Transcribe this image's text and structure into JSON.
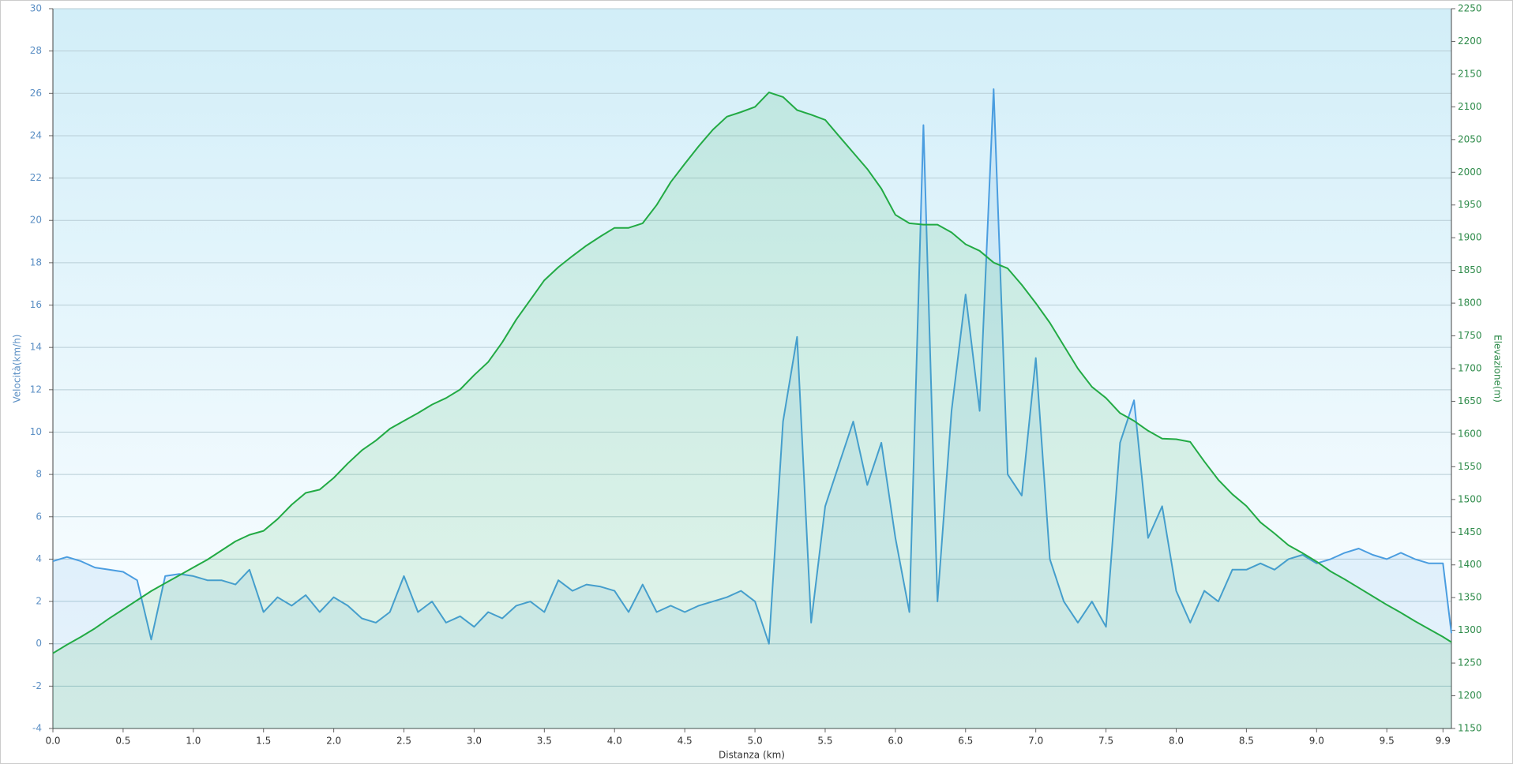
{
  "chart_data": {
    "type": "line",
    "x_label": "Distanza  (km)",
    "y_label": "Velocità(km/h)",
    "y2_label": "Elevazione(m)",
    "x": [
      0.0,
      0.1,
      0.2,
      0.3,
      0.4,
      0.5,
      0.6,
      0.7,
      0.8,
      0.9,
      1.0,
      1.1,
      1.2,
      1.3,
      1.4,
      1.5,
      1.6,
      1.7,
      1.8,
      1.9,
      2.0,
      2.1,
      2.2,
      2.3,
      2.4,
      2.5,
      2.6,
      2.7,
      2.8,
      2.9,
      3.0,
      3.1,
      3.2,
      3.3,
      3.4,
      3.5,
      3.6,
      3.7,
      3.8,
      3.9,
      4.0,
      4.1,
      4.2,
      4.3,
      4.4,
      4.5,
      4.6,
      4.7,
      4.8,
      4.9,
      5.0,
      5.1,
      5.2,
      5.3,
      5.4,
      5.5,
      5.6,
      5.7,
      5.8,
      5.9,
      6.0,
      6.1,
      6.2,
      6.3,
      6.4,
      6.5,
      6.6,
      6.7,
      6.8,
      6.9,
      7.0,
      7.1,
      7.2,
      7.3,
      7.4,
      7.5,
      7.6,
      7.7,
      7.8,
      7.9,
      8.0,
      8.1,
      8.2,
      8.3,
      8.4,
      8.5,
      8.6,
      8.7,
      8.8,
      8.9,
      9.0,
      9.1,
      9.2,
      9.3,
      9.4,
      9.5,
      9.6,
      9.7,
      9.8,
      9.9,
      9.96
    ],
    "series": [
      {
        "name": "Velocità",
        "color": "#4a9de0",
        "values": [
          3.9,
          4.1,
          3.9,
          3.6,
          3.5,
          3.4,
          3.0,
          0.2,
          3.2,
          3.3,
          3.2,
          3.0,
          3.0,
          2.8,
          3.5,
          1.5,
          2.2,
          1.8,
          2.3,
          1.5,
          2.2,
          1.8,
          1.2,
          1.0,
          1.5,
          3.2,
          1.5,
          2.0,
          1.0,
          1.3,
          0.8,
          1.5,
          1.2,
          1.8,
          2.0,
          1.5,
          3.0,
          2.5,
          2.8,
          2.7,
          2.5,
          1.5,
          2.8,
          1.5,
          1.8,
          1.5,
          1.8,
          2.0,
          2.2,
          2.5,
          2.0,
          0.0,
          10.5,
          14.5,
          1.0,
          6.5,
          8.5,
          10.5,
          7.5,
          9.5,
          5.0,
          1.5,
          24.5,
          2.0,
          11.0,
          16.5,
          11.0,
          26.2,
          8.0,
          7.0,
          13.5,
          4.0,
          2.0,
          1.0,
          2.0,
          0.8,
          9.5,
          11.5,
          5.0,
          6.5,
          2.5,
          1.0,
          2.5,
          2.0,
          3.5,
          3.5,
          3.8,
          3.5,
          4.0,
          4.2,
          3.8,
          4.0,
          4.3,
          4.5,
          4.2,
          4.0,
          4.3,
          4.0,
          3.8,
          3.8,
          0.5
        ]
      },
      {
        "name": "Elevazione",
        "color": "#22aa44",
        "axis": "y2",
        "values": [
          1265,
          1278,
          1290,
          1303,
          1318,
          1332,
          1346,
          1360,
          1372,
          1384,
          1396,
          1408,
          1422,
          1436,
          1446,
          1452,
          1470,
          1492,
          1510,
          1515,
          1533,
          1555,
          1575,
          1590,
          1608,
          1620,
          1632,
          1645,
          1655,
          1668,
          1690,
          1710,
          1740,
          1775,
          1805,
          1835,
          1855,
          1872,
          1888,
          1902,
          1915,
          1915,
          1922,
          1950,
          1985,
          2013,
          2040,
          2065,
          2085,
          2092,
          2100,
          2122,
          2115,
          2095,
          2088,
          2080,
          2055,
          2030,
          2005,
          1975,
          1935,
          1922,
          1920,
          1920,
          1908,
          1890,
          1880,
          1862,
          1853,
          1828,
          1800,
          1770,
          1735,
          1700,
          1672,
          1655,
          1632,
          1620,
          1605,
          1593,
          1592,
          1588,
          1558,
          1530,
          1508,
          1490,
          1465,
          1448,
          1430,
          1418,
          1405,
          1390,
          1378,
          1365,
          1352,
          1339,
          1327,
          1314,
          1302,
          1290,
          1282
        ]
      }
    ],
    "xlim": [
      0,
      9.96
    ],
    "xticks": [
      {
        "value": 0,
        "label": "0.0"
      },
      0.5,
      {
        "value": 1,
        "label": "1.0"
      },
      1.5,
      {
        "value": 2,
        "label": "2.0"
      },
      2.5,
      {
        "value": 3,
        "label": "3.0"
      },
      3.5,
      {
        "value": 4,
        "label": "4.0"
      },
      4.5,
      {
        "value": 5,
        "label": "5.0"
      },
      5.5,
      {
        "value": 6,
        "label": "6.0"
      },
      6.5,
      {
        "value": 7,
        "label": "7.0"
      },
      7.5,
      {
        "value": 8,
        "label": "8.0"
      },
      8.5,
      {
        "value": 9,
        "label": "9.0"
      },
      9.5,
      9.9
    ],
    "ylim": [
      -4,
      30
    ],
    "yticks": [
      -4,
      -2,
      0,
      2,
      4,
      6,
      8,
      10,
      12,
      14,
      16,
      18,
      20,
      22,
      24,
      26,
      28,
      30
    ],
    "y2lim": [
      1150,
      2250
    ],
    "y2ticks": [
      1150,
      1200,
      1250,
      1300,
      1350,
      1400,
      1450,
      1500,
      1550,
      1600,
      1650,
      1700,
      1750,
      1800,
      1850,
      1900,
      1950,
      2000,
      2050,
      2100,
      2150,
      2200,
      2250
    ],
    "grid": true
  }
}
